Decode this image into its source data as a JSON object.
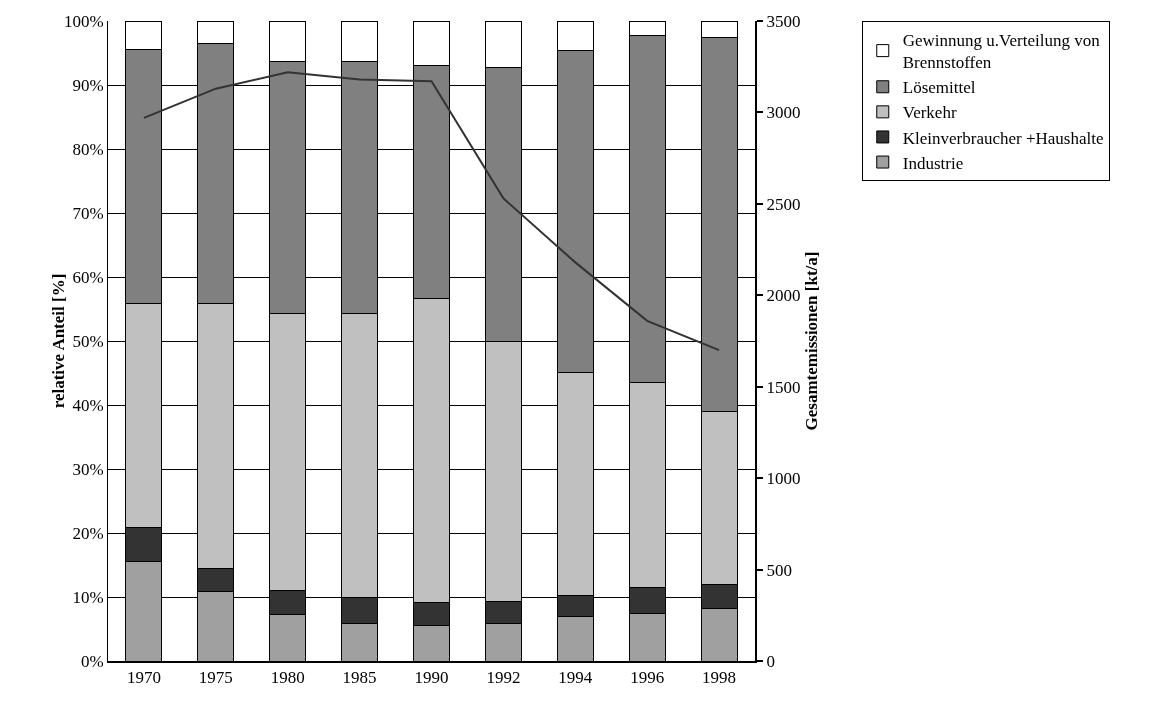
{
  "chart_data": {
    "type": "bar",
    "stacked": true,
    "ylabel": "relative Anteil [%]",
    "y2label": "Gesamtemissionen [kt/a]",
    "categories": [
      "1970",
      "1975",
      "1980",
      "1985",
      "1990",
      "1992",
      "1994",
      "1996",
      "1998"
    ],
    "series": [
      {
        "name": "Industrie",
        "color": "#a0a0a0",
        "values": [
          15.5,
          10.8,
          7.3,
          5.9,
          5.6,
          5.9,
          7.0,
          7.5,
          8.2
        ]
      },
      {
        "name": "Kleinverbraucher +Haushalte",
        "color": "#333333",
        "values": [
          5.3,
          3.7,
          3.7,
          4.1,
          3.5,
          3.4,
          3.2,
          4.0,
          3.7
        ]
      },
      {
        "name": "Verkehr",
        "color": "#c0c0c0",
        "values": [
          35.0,
          41.3,
          43.3,
          44.3,
          47.5,
          40.7,
          34.9,
          32.0,
          27.1
        ]
      },
      {
        "name": "Lösemittel",
        "color": "#808080",
        "values": [
          39.7,
          40.7,
          39.3,
          39.3,
          36.4,
          42.8,
          50.3,
          54.2,
          58.5
        ]
      },
      {
        "name": "Gewinnung u.Verteilung von Brennstoffen",
        "color": "#ffffff",
        "values": [
          4.5,
          3.5,
          6.4,
          6.4,
          7.0,
          7.2,
          4.6,
          2.3,
          2.5
        ]
      },
      {
        "type": "line",
        "axis": "y2",
        "color": "#333333",
        "values": [
          2970,
          3130,
          3220,
          3180,
          3170,
          2530,
          2180,
          1860,
          1700
        ]
      }
    ],
    "ylim": [
      0,
      100
    ],
    "yticks": [
      {
        "value": 0,
        "label": "0%"
      },
      {
        "value": 10,
        "label": "10%"
      },
      {
        "value": 20,
        "label": "20%"
      },
      {
        "value": 30,
        "label": "30%"
      },
      {
        "value": 40,
        "label": "40%"
      },
      {
        "value": 50,
        "label": "50%"
      },
      {
        "value": 60,
        "label": "60%"
      },
      {
        "value": 70,
        "label": "70%"
      },
      {
        "value": 80,
        "label": "80%"
      },
      {
        "value": 90,
        "label": "90%"
      },
      {
        "value": 100,
        "label": "100%"
      }
    ],
    "y2lim": [
      0,
      3500
    ],
    "y2ticks": [
      0,
      500,
      1000,
      1500,
      2000,
      2500,
      3000,
      3500
    ],
    "grid": "y",
    "legend": "top right",
    "marker": "none",
    "line_style": "solid"
  }
}
